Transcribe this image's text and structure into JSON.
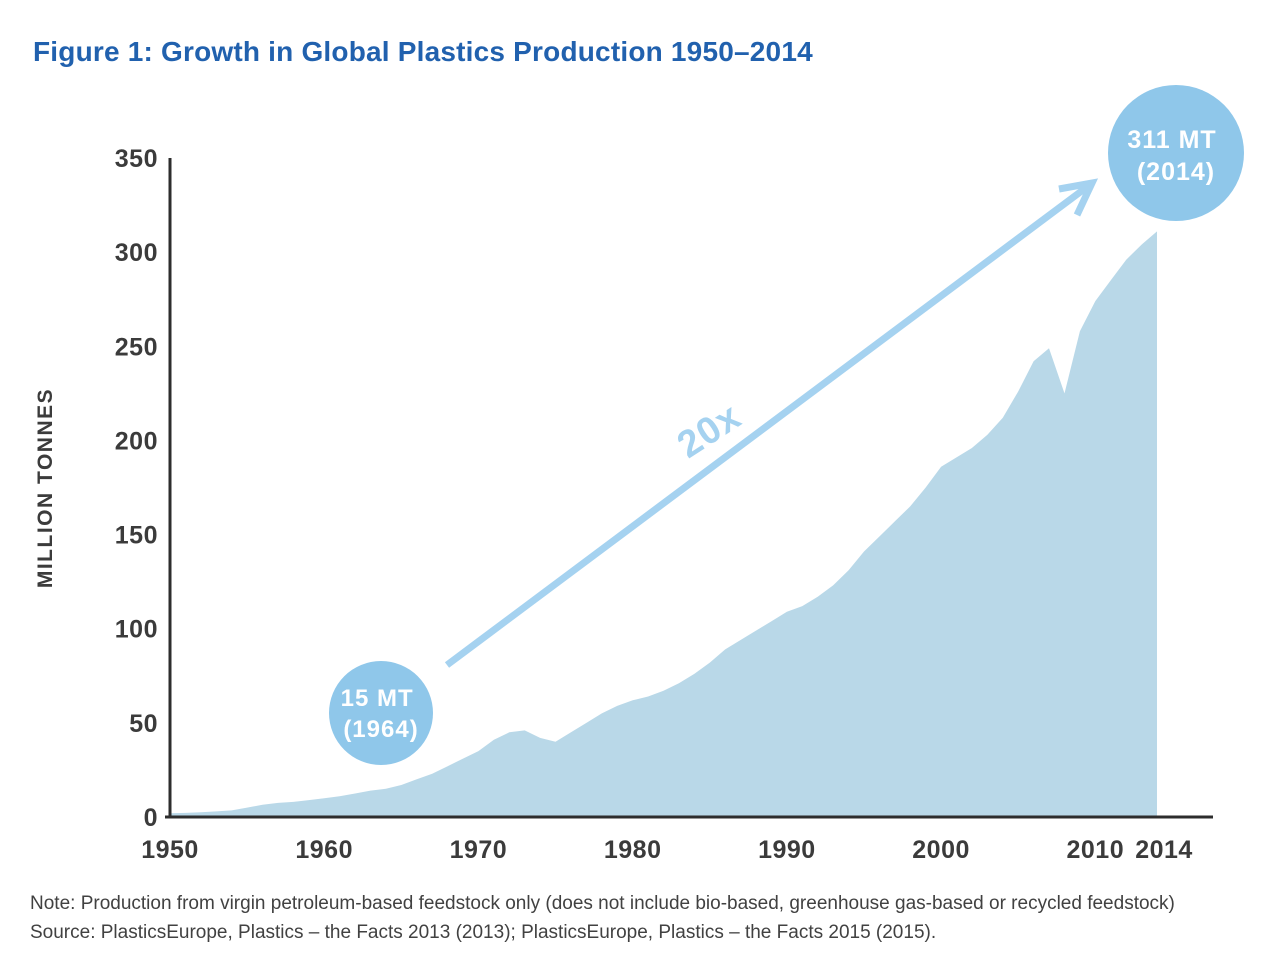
{
  "title": "Figure 1: Growth in Global Plastics Production 1950–2014",
  "note": "Note: Production from virgin petroleum-based feedstock only (does not include bio-based, greenhouse gas-based or recycled feedstock)",
  "source": "Source: PlasticsEurope, Plastics – the Facts 2013 (2013); PlasticsEurope, Plastics – the Facts 2015 (2015).",
  "colors": {
    "title_blue": "#2161ae",
    "axis_text": "#3b3b3b",
    "axis_line": "#2d2d2d",
    "footnote_text": "#414141",
    "area_fill": "#b9d8e8",
    "badge_fill": "#8fc7ea",
    "arrow_blue": "#a5d2f0",
    "badge_text": "#ffffff"
  },
  "chart_data": {
    "type": "area",
    "title": "Growth in Global Plastics Production 1950–2014",
    "xlabel": "",
    "ylabel": "MILLION TONNES",
    "xlim": [
      1950,
      2014
    ],
    "ylim": [
      0,
      350
    ],
    "grid": false,
    "legend": "none",
    "yticks": [
      0,
      50,
      100,
      150,
      200,
      250,
      300,
      350
    ],
    "xticks": [
      1950,
      1960,
      1970,
      1980,
      1990,
      2000,
      2010,
      2014
    ],
    "x": [
      1950,
      1951,
      1952,
      1953,
      1954,
      1955,
      1956,
      1957,
      1958,
      1959,
      1960,
      1961,
      1962,
      1963,
      1964,
      1965,
      1966,
      1967,
      1968,
      1969,
      1970,
      1971,
      1972,
      1973,
      1974,
      1975,
      1976,
      1977,
      1978,
      1979,
      1980,
      1981,
      1982,
      1983,
      1984,
      1985,
      1986,
      1987,
      1988,
      1989,
      1990,
      1991,
      1992,
      1993,
      1994,
      1995,
      1996,
      1997,
      1998,
      1999,
      2000,
      2001,
      2002,
      2003,
      2004,
      2005,
      2006,
      2007,
      2008,
      2009,
      2010,
      2011,
      2012,
      2013,
      2014
    ],
    "values": [
      2,
      2.2,
      2.5,
      3,
      3.5,
      5,
      6.5,
      7.5,
      8,
      9,
      10,
      11,
      12.5,
      14,
      15,
      17,
      20,
      23,
      27,
      31,
      35,
      41,
      45,
      46,
      42,
      40,
      45,
      50,
      55,
      59,
      62,
      64,
      67,
      71,
      76,
      82,
      89,
      94,
      99,
      104,
      109,
      112,
      117,
      123,
      131,
      141,
      149,
      157,
      165,
      175,
      186,
      191,
      196,
      203,
      212,
      226,
      242,
      249,
      225,
      258,
      274,
      285,
      296,
      304,
      311
    ],
    "annotations": {
      "start_badge": {
        "line1": "15 MT",
        "line2": "(1964)",
        "year": 1964,
        "value": 15
      },
      "end_badge": {
        "line1": "311 MT",
        "line2": "(2014)",
        "year": 2014,
        "value": 311
      },
      "growth_label": "20x"
    }
  }
}
